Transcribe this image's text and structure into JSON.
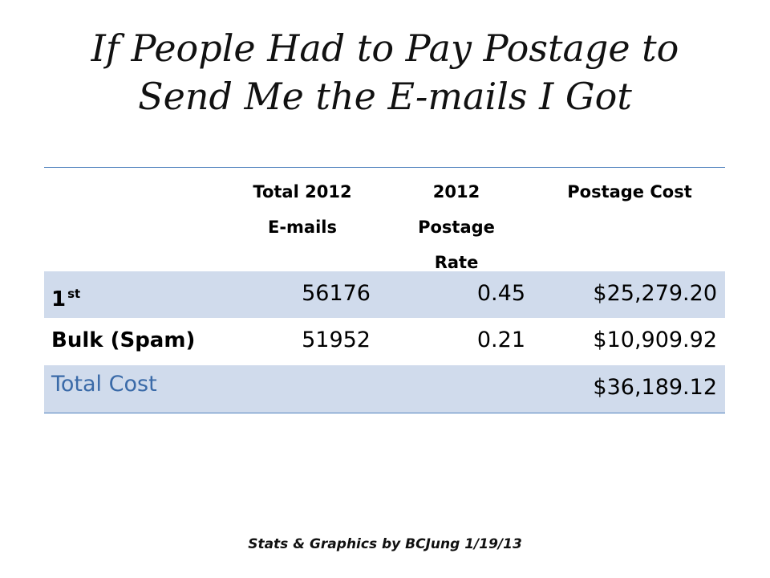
{
  "slide": {
    "title_line1": "If People Had to Pay Postage to",
    "title_line2": "Send Me the E-mails I Got",
    "credit": "Stats & Graphics by BCJung 1/19/13"
  },
  "table": {
    "headers": {
      "col1_line1": "Total 2012",
      "col1_line2": "E-mails",
      "col2_line1": "2012",
      "col2_line2": "Postage",
      "col2_line3": "Rate",
      "col3_line1": "Postage Cost"
    },
    "rows": [
      {
        "label": "1",
        "label_sup": "st",
        "emails": "56176",
        "rate": "0.45",
        "cost": "$25,279.20"
      },
      {
        "label": "Bulk (Spam)",
        "emails": "51952",
        "rate": "0.21",
        "cost": "$10,909.92"
      }
    ],
    "total": {
      "label": "Total Cost",
      "cost": "$36,189.12"
    }
  },
  "colors": {
    "accent": "#4f81bd",
    "band": "#d0dbec",
    "total_text": "#3a6aa8"
  }
}
